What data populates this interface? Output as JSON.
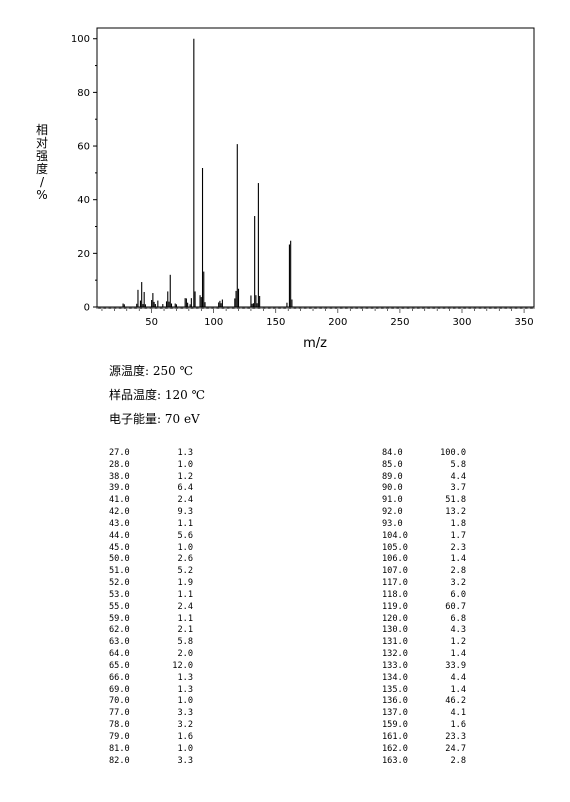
{
  "chart_data": {
    "type": "bar",
    "title": "",
    "xlabel": "m/z",
    "ylabel": "相对强度/%",
    "xlim": [
      6,
      358
    ],
    "ylim": [
      0,
      104
    ],
    "xticks": [
      50,
      100,
      150,
      200,
      250,
      300,
      350
    ],
    "yticks": [
      0,
      20,
      40,
      60,
      80,
      100
    ],
    "grid": false,
    "peaks": [
      [
        27.0,
        1.3
      ],
      [
        28.0,
        1.0
      ],
      [
        38.0,
        1.2
      ],
      [
        39.0,
        6.4
      ],
      [
        41.0,
        2.4
      ],
      [
        42.0,
        9.3
      ],
      [
        43.0,
        1.1
      ],
      [
        44.0,
        5.6
      ],
      [
        45.0,
        1.0
      ],
      [
        50.0,
        2.6
      ],
      [
        51.0,
        5.2
      ],
      [
        52.0,
        1.9
      ],
      [
        53.0,
        1.1
      ],
      [
        55.0,
        2.4
      ],
      [
        59.0,
        1.1
      ],
      [
        62.0,
        2.1
      ],
      [
        63.0,
        5.8
      ],
      [
        64.0,
        2.0
      ],
      [
        65.0,
        12.0
      ],
      [
        66.0,
        1.3
      ],
      [
        69.0,
        1.3
      ],
      [
        70.0,
        1.0
      ],
      [
        77.0,
        3.3
      ],
      [
        78.0,
        3.2
      ],
      [
        79.0,
        1.6
      ],
      [
        81.0,
        1.0
      ],
      [
        82.0,
        3.3
      ],
      [
        84.0,
        100.0
      ],
      [
        85.0,
        5.8
      ],
      [
        89.0,
        4.4
      ],
      [
        90.0,
        3.7
      ],
      [
        91.0,
        51.8
      ],
      [
        92.0,
        13.2
      ],
      [
        93.0,
        1.8
      ],
      [
        104.0,
        1.7
      ],
      [
        105.0,
        2.3
      ],
      [
        106.0,
        1.4
      ],
      [
        107.0,
        2.8
      ],
      [
        117.0,
        3.2
      ],
      [
        118.0,
        6.0
      ],
      [
        119.0,
        60.7
      ],
      [
        120.0,
        6.8
      ],
      [
        130.0,
        4.3
      ],
      [
        131.0,
        1.2
      ],
      [
        132.0,
        1.4
      ],
      [
        133.0,
        33.9
      ],
      [
        134.0,
        4.4
      ],
      [
        135.0,
        1.4
      ],
      [
        136.0,
        46.2
      ],
      [
        137.0,
        4.1
      ],
      [
        159.0,
        1.6
      ],
      [
        161.0,
        23.3
      ],
      [
        162.0,
        24.7
      ],
      [
        163.0,
        2.8
      ]
    ]
  },
  "conditions": [
    "源温度: 250 ℃",
    "样品温度: 120 ℃",
    "电子能量: 70 eV"
  ],
  "peak_table": {
    "left": [
      [
        "27.0",
        "1.3"
      ],
      [
        "28.0",
        "1.0"
      ],
      [
        "38.0",
        "1.2"
      ],
      [
        "39.0",
        "6.4"
      ],
      [
        "41.0",
        "2.4"
      ],
      [
        "42.0",
        "9.3"
      ],
      [
        "43.0",
        "1.1"
      ],
      [
        "44.0",
        "5.6"
      ],
      [
        "45.0",
        "1.0"
      ],
      [
        "50.0",
        "2.6"
      ],
      [
        "51.0",
        "5.2"
      ],
      [
        "52.0",
        "1.9"
      ],
      [
        "53.0",
        "1.1"
      ],
      [
        "55.0",
        "2.4"
      ],
      [
        "59.0",
        "1.1"
      ],
      [
        "62.0",
        "2.1"
      ],
      [
        "63.0",
        "5.8"
      ],
      [
        "64.0",
        "2.0"
      ],
      [
        "65.0",
        "12.0"
      ],
      [
        "66.0",
        "1.3"
      ],
      [
        "69.0",
        "1.3"
      ],
      [
        "70.0",
        "1.0"
      ],
      [
        "77.0",
        "3.3"
      ],
      [
        "78.0",
        "3.2"
      ],
      [
        "79.0",
        "1.6"
      ],
      [
        "81.0",
        "1.0"
      ],
      [
        "82.0",
        "3.3"
      ]
    ],
    "right": [
      [
        "84.0",
        "100.0"
      ],
      [
        "85.0",
        "5.8"
      ],
      [
        "89.0",
        "4.4"
      ],
      [
        "90.0",
        "3.7"
      ],
      [
        "91.0",
        "51.8"
      ],
      [
        "92.0",
        "13.2"
      ],
      [
        "93.0",
        "1.8"
      ],
      [
        "104.0",
        "1.7"
      ],
      [
        "105.0",
        "2.3"
      ],
      [
        "106.0",
        "1.4"
      ],
      [
        "107.0",
        "2.8"
      ],
      [
        "117.0",
        "3.2"
      ],
      [
        "118.0",
        "6.0"
      ],
      [
        "119.0",
        "60.7"
      ],
      [
        "120.0",
        "6.8"
      ],
      [
        "130.0",
        "4.3"
      ],
      [
        "131.0",
        "1.2"
      ],
      [
        "132.0",
        "1.4"
      ],
      [
        "133.0",
        "33.9"
      ],
      [
        "134.0",
        "4.4"
      ],
      [
        "135.0",
        "1.4"
      ],
      [
        "136.0",
        "46.2"
      ],
      [
        "137.0",
        "4.1"
      ],
      [
        "159.0",
        "1.6"
      ],
      [
        "161.0",
        "23.3"
      ],
      [
        "162.0",
        "24.7"
      ],
      [
        "163.0",
        "2.8"
      ]
    ]
  }
}
